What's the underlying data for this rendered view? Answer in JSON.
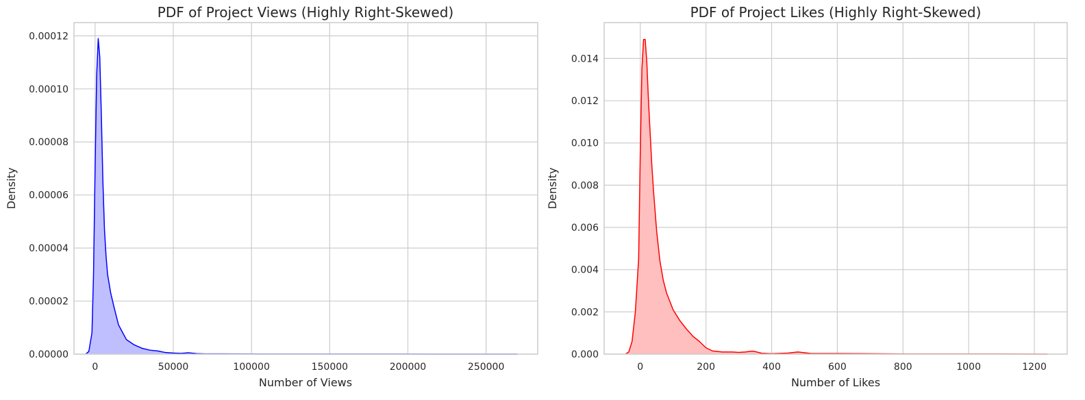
{
  "chart_data": [
    {
      "type": "area",
      "title": "PDF of Project Views (Highly Right-Skewed)",
      "xlabel": "Number of Views",
      "ylabel": "Density",
      "xlim": [
        -13500,
        283000
      ],
      "ylim": [
        0,
        0.000125
      ],
      "xticks": [
        0,
        50000,
        100000,
        150000,
        200000,
        250000
      ],
      "xtick_labels": [
        "0",
        "50000",
        "100000",
        "150000",
        "200000",
        "250000"
      ],
      "yticks": [
        0,
        2e-05,
        4e-05,
        6e-05,
        8e-05,
        0.0001,
        0.00012
      ],
      "ytick_labels": [
        "0.00000",
        "0.00002",
        "0.00004",
        "0.00006",
        "0.00008",
        "0.00010",
        "0.00012"
      ],
      "grid": true,
      "line_color": "#0000ff",
      "fill_color": "#bfbfff",
      "series": [
        {
          "x": [
            -6000,
            -4000,
            -2000,
            -1000,
            0,
            1000,
            2000,
            3000,
            4000,
            5000,
            6000,
            7000,
            8000,
            10000,
            12000,
            15000,
            20000,
            25000,
            30000,
            35000,
            40000,
            45000,
            50000,
            55000,
            60000,
            65000,
            70000,
            80000,
            100000,
            150000,
            200000,
            270000
          ],
          "y": [
            0,
            1e-06,
            8e-06,
            3e-05,
            7e-05,
            0.000105,
            0.000119,
            0.000112,
            9e-05,
            6.5e-05,
            4.7e-05,
            3.7e-05,
            3e-05,
            2.3e-05,
            1.8e-05,
            1.1e-05,
            5.5e-06,
            3.5e-06,
            2.2e-06,
            1.5e-06,
            1.2e-06,
            6e-07,
            4e-07,
            3e-07,
            5e-07,
            2e-07,
            1e-07,
            1e-07,
            5e-08,
            3e-08,
            2e-08,
            0
          ]
        }
      ]
    },
    {
      "type": "area",
      "title": "PDF of Project Likes (Highly Right-Skewed)",
      "xlabel": "Number of Likes",
      "ylabel": "Density",
      "xlim": [
        -110,
        1300
      ],
      "ylim": [
        0,
        0.0157
      ],
      "xticks": [
        0,
        200,
        400,
        600,
        800,
        1000,
        1200
      ],
      "xtick_labels": [
        "0",
        "200",
        "400",
        "600",
        "800",
        "1000",
        "1200"
      ],
      "yticks": [
        0,
        0.002,
        0.004,
        0.006,
        0.008,
        0.01,
        0.012,
        0.014
      ],
      "ytick_labels": [
        "0.000",
        "0.002",
        "0.004",
        "0.006",
        "0.008",
        "0.010",
        "0.012",
        "0.014"
      ],
      "grid": true,
      "line_color": "#ff0000",
      "fill_color": "#ffbfbf",
      "series": [
        {
          "x": [
            -45,
            -35,
            -25,
            -15,
            -5,
            0,
            5,
            10,
            15,
            20,
            25,
            30,
            35,
            40,
            50,
            60,
            70,
            80,
            100,
            120,
            140,
            160,
            180,
            200,
            220,
            250,
            280,
            300,
            320,
            340,
            350,
            370,
            400,
            450,
            480,
            520,
            600,
            700,
            800,
            900,
            1000,
            1100,
            1240
          ],
          "y": [
            0,
            0.0001,
            0.0006,
            0.002,
            0.0045,
            0.0095,
            0.0135,
            0.0149,
            0.0149,
            0.0138,
            0.012,
            0.0105,
            0.009,
            0.0078,
            0.0058,
            0.0044,
            0.0035,
            0.0029,
            0.0021,
            0.0016,
            0.0012,
            0.00085,
            0.0006,
            0.0003,
            0.00015,
            0.0001,
            0.0001,
            8e-05,
            0.0001,
            0.00014,
            0.00012,
            4e-05,
            2e-05,
            5e-05,
            0.0001,
            3e-05,
            3e-05,
            2e-05,
            1e-05,
            1e-05,
            1e-05,
            1e-05,
            0
          ]
        }
      ]
    }
  ]
}
